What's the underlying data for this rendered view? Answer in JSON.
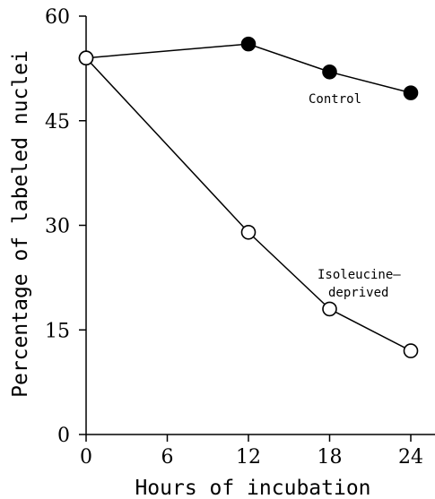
{
  "chart_data": {
    "type": "line",
    "xlabel": "Hours of incubation",
    "ylabel": "Percentage of labeled nuclei",
    "xlim": [
      0,
      24
    ],
    "ylim": [
      0,
      60
    ],
    "x_ticks": [
      0,
      6,
      12,
      18,
      24
    ],
    "y_ticks": [
      0,
      15,
      30,
      45,
      60
    ],
    "grid": false,
    "series": [
      {
        "name": "Control",
        "marker": "filled-circle",
        "color": "#000000",
        "points": [
          {
            "x": 0,
            "y": 54
          },
          {
            "x": 12,
            "y": 56
          },
          {
            "x": 18,
            "y": 52
          },
          {
            "x": 24,
            "y": 49
          }
        ]
      },
      {
        "name": "Isoleucine– deprived",
        "label_lines": [
          "Isoleucine–",
          "deprived"
        ],
        "marker": "open-circle",
        "color": "#000000",
        "points": [
          {
            "x": 0,
            "y": 54
          },
          {
            "x": 12,
            "y": 29
          },
          {
            "x": 18,
            "y": 18
          },
          {
            "x": 24,
            "y": 12
          }
        ]
      }
    ]
  }
}
